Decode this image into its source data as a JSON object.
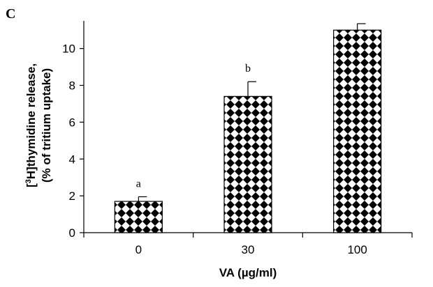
{
  "chart_data": {
    "type": "bar",
    "panel_label": "C",
    "categories": [
      "0",
      "30",
      "100"
    ],
    "values": [
      1.7,
      7.4,
      11.0
    ],
    "errors": [
      0.25,
      0.8,
      0.35
    ],
    "significance_labels": [
      "a",
      "b",
      ""
    ],
    "xlabel": "VA (µg/ml)",
    "ylabel_line1_pre": "[",
    "ylabel_line1_sup": "3",
    "ylabel_line1_post": "H]thymidine release,",
    "ylabel_line2": "(% of tritium uptake)",
    "ylim": [
      0,
      11.5
    ],
    "yticks": [
      0,
      2,
      4,
      6,
      8,
      10
    ],
    "grid": false,
    "legend": "none",
    "bar_pattern": "checkerboard-diamond",
    "colors": {
      "bar_fill": "#000000",
      "bar_pattern_bg": "#ffffff",
      "axis": "#000000"
    }
  }
}
